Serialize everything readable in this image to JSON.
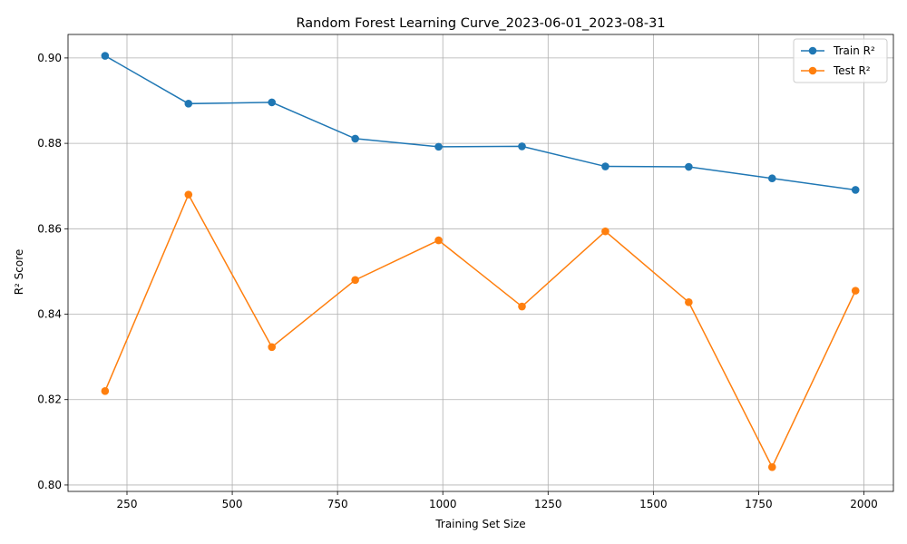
{
  "chart_data": {
    "type": "line",
    "title": "Random Forest Learning Curve_2023-06-01_2023-08-31",
    "xlabel": "Training Set Size",
    "ylabel": "R² Score",
    "xlim": [
      110,
      2070
    ],
    "ylim": [
      0.7985,
      0.9055
    ],
    "xticks": [
      250,
      500,
      750,
      1000,
      1250,
      1500,
      1750,
      2000
    ],
    "yticks": [
      0.8,
      0.82,
      0.84,
      0.86,
      0.88,
      0.9
    ],
    "ytick_labels": [
      "0.80",
      "0.82",
      "0.84",
      "0.86",
      "0.88",
      "0.90"
    ],
    "grid": true,
    "legend_position": "top-right",
    "x": [
      198,
      396,
      594,
      792,
      990,
      1188,
      1386,
      1584,
      1782,
      1980
    ],
    "series": [
      {
        "name": "Train R²",
        "color": "#1f77b4",
        "values": [
          0.9005,
          0.8893,
          0.8896,
          0.8811,
          0.8792,
          0.8793,
          0.8746,
          0.8745,
          0.8718,
          0.8691
        ]
      },
      {
        "name": "Test R²",
        "color": "#ff7f0e",
        "values": [
          0.822,
          0.868,
          0.8323,
          0.848,
          0.8573,
          0.8418,
          0.8594,
          0.8428,
          0.8042,
          0.8455
        ]
      }
    ]
  }
}
